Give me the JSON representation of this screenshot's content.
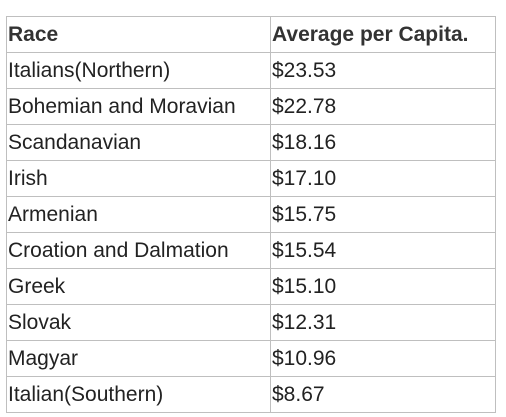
{
  "table": {
    "headers": {
      "race": "Race",
      "average": "Average per Capita."
    },
    "rows": [
      {
        "race": "Italians(Northern)",
        "average": "$23.53"
      },
      {
        "race": "Bohemian and Moravian",
        "average": "$22.78"
      },
      {
        "race": "Scandanavian",
        "average": "$18.16"
      },
      {
        "race": "Irish",
        "average": "$17.10"
      },
      {
        "race": "Armenian",
        "average": "$15.75"
      },
      {
        "race": "Croation and Dalmation",
        "average": "$15.54"
      },
      {
        "race": "Greek",
        "average": "$15.10"
      },
      {
        "race": "Slovak",
        "average": "$12.31"
      },
      {
        "race": "Magyar",
        "average": "$10.96"
      },
      {
        "race": "Italian(Southern)",
        "average": "$8.67"
      }
    ]
  }
}
